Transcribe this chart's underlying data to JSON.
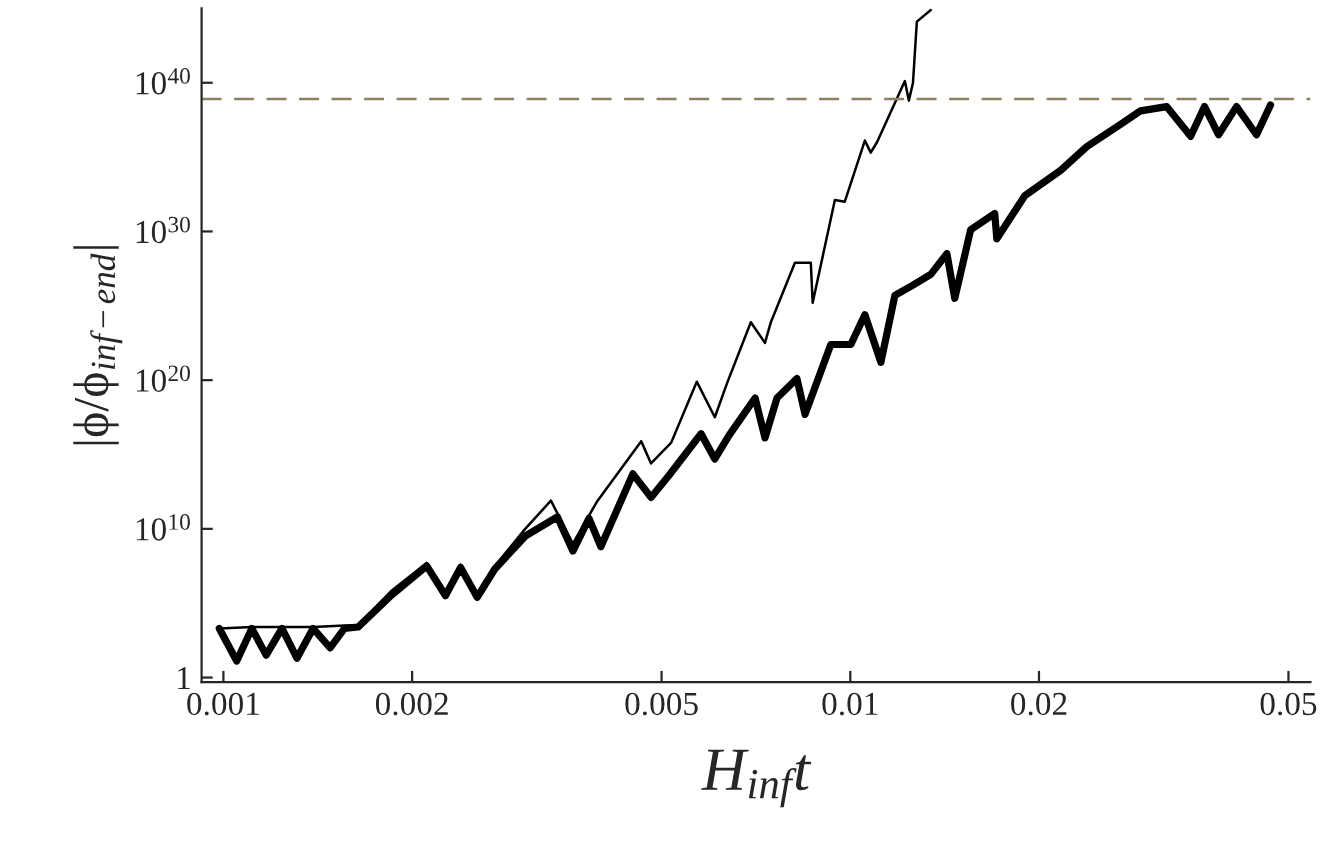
{
  "chart_data": {
    "type": "line",
    "xlabel": "H$_{inf}$t",
    "ylabel": "|ϕ/ϕ$_{inf−end}$|",
    "log": "xy",
    "grid": false,
    "legend": false,
    "xlim": [
      0.000923,
      0.0542
    ],
    "ylim": [
      0.5,
      1e+45
    ],
    "xticks": [
      0.001,
      0.002,
      0.005,
      0.01,
      0.02,
      0.05
    ],
    "yticks": [
      1,
      {
        "value": 10000000000.0,
        "label": "10$^{10}$"
      },
      {
        "value": 1e+20,
        "label": "10$^{20}$"
      },
      {
        "value": 1e+30,
        "label": "10$^{30}$"
      },
      {
        "value": 1e+40,
        "label": "10$^{40}$"
      }
    ],
    "ref_lines": [
      {
        "axis": "y",
        "value": 8e+38,
        "color": "#8c8060",
        "line_style": "dashed"
      }
    ],
    "series": [
      {
        "color": "#000000",
        "x": [
          0.000985,
          0.00111,
          0.00124,
          0.00139,
          0.00156,
          0.00164,
          0.00185,
          0.00211,
          0.00226,
          0.00239,
          0.00254,
          0.00271,
          0.00303,
          0.00333,
          0.00361,
          0.00394,
          0.00464,
          0.00481,
          0.00518,
          0.00569,
          0.00608,
          0.00636,
          0.00694,
          0.00731,
          0.00747,
          0.00816,
          0.00865,
          0.00871,
          0.00945,
          0.0098,
          0.01055,
          0.01078,
          0.01103,
          0.01222,
          0.0124,
          0.01259,
          0.01277,
          0.01344
        ],
        "values": [
          2000.0,
          2500.0,
          2500.0,
          2500.0,
          3200.0,
          3200.0,
          630000.0,
          50000000.0,
          630000.0,
          40000000.0,
          400000.0,
          32000000.0,
          10000000000.0,
          790000000000.0,
          1000000000.0,
          630000000000.0,
          7900000000000000.0,
          250000000000000.0,
          6300000000000000.0,
          7.9e+19,
          3.2e+17,
          6.3e+19,
          7.9e+23,
          3.2e+22,
          7.9e+23,
          7.9e+27,
          7.9e+27,
          1.6e+25,
          1.3e+32,
          1e+32,
          1.3e+36,
          2e+35,
          1e+36,
          1.3e+40,
          6.3e+38,
          1e+40,
          1.3e+44,
          7.9e+44
        ]
      },
      {
        "color": "#000000",
        "x": [
          0.000985,
          0.00105,
          0.00111,
          0.00117,
          0.00124,
          0.00131,
          0.00139,
          0.00148,
          0.00156,
          0.00164,
          0.00185,
          0.00211,
          0.00226,
          0.00239,
          0.00254,
          0.00271,
          0.00303,
          0.00341,
          0.00361,
          0.00383,
          0.004,
          0.0045,
          0.00481,
          0.00514,
          0.00578,
          0.00608,
          0.00641,
          0.00705,
          0.00731,
          0.00764,
          0.00822,
          0.00847,
          0.00931,
          0.01002,
          0.01055,
          0.01119,
          0.01178,
          0.01259,
          0.01344,
          0.01426,
          0.01468,
          0.01556,
          0.017,
          0.01713,
          0.01898,
          0.02167,
          0.02383,
          0.027,
          0.02905,
          0.03196,
          0.03491,
          0.03674,
          0.03868,
          0.04132,
          0.04447,
          0.04681
        ],
        "values": [
          2000.0,
          13,
          2000.0,
          32,
          2000.0,
          20,
          2000.0,
          100,
          2000.0,
          2500.0,
          320000.0,
          32000000.0,
          320000.0,
          25000000.0,
          250000.0,
          20000000.0,
          3200000000.0,
          63000000000.0,
          320000000.0,
          50000000000.0,
          630000000.0,
          50000000000000.0,
          1300000000000.0,
          40000000000000.0,
          2.5e+16,
          500000000000000.0,
          2e+16,
          6.3e+18,
          1.3e+16,
          6.3e+18,
          1.3e+20,
          5e+17,
          2.5e+22,
          2.5e+22,
          2.5e+24,
          1.6e+21,
          5e+25,
          2.5e+26,
          1.3e+27,
          3.2e+28,
          3.2e+25,
          1.3e+30,
          1.6e+31,
          3.2e+29,
          2.5e+32,
          1.3e+34,
          5e+35,
          1.6e+37,
          1.3e+38,
          2.5e+38,
          2.5e+36,
          2.5e+38,
          3.2e+36,
          2.5e+38,
          3.2e+36,
          3.2e+38
        ]
      }
    ]
  }
}
